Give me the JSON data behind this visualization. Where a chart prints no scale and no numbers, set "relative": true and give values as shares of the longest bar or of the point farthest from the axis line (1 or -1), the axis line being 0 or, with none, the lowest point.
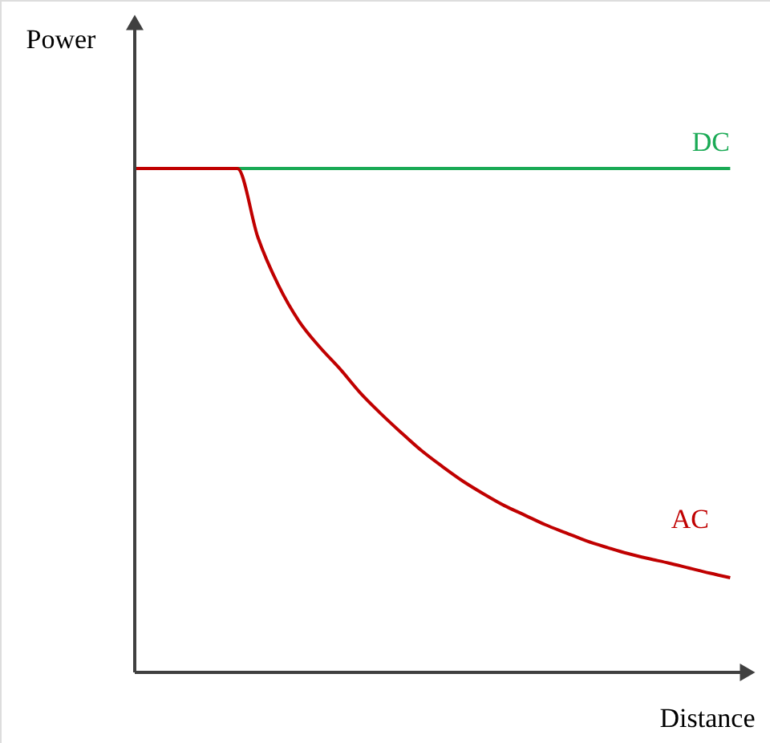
{
  "chart_data": {
    "type": "line",
    "relative": true,
    "xlabel": "Distance",
    "ylabel": "Power",
    "categories": [
      null,
      null,
      null,
      null,
      null,
      null,
      null,
      null,
      null,
      null,
      null,
      null,
      null,
      null,
      null,
      null,
      null,
      null,
      null,
      null,
      null,
      null,
      null,
      null,
      null,
      null,
      null,
      null,
      null,
      null
    ],
    "series": [
      {
        "name": "DC",
        "color": "#1aaa55",
        "values": [
          null,
          null,
          null,
          null,
          null,
          1,
          1,
          1,
          1,
          1,
          1,
          1,
          1,
          1,
          1,
          1,
          1,
          1,
          1,
          1,
          1,
          1,
          1,
          1,
          1,
          1,
          1,
          1,
          1,
          1
        ]
      },
      {
        "name": "AC",
        "color": "#c00000",
        "values": [
          1,
          1,
          1,
          1,
          1,
          1,
          0.863,
          0.768,
          0.697,
          0.646,
          0.602,
          0.554,
          0.513,
          0.475,
          0.439,
          0.408,
          0.379,
          0.354,
          0.331,
          0.312,
          0.293,
          0.277,
          0.261,
          0.248,
          0.236,
          0.226,
          0.217,
          0.207,
          0.197,
          0.188
        ]
      }
    ],
    "marker": "none",
    "line_style": "solid"
  }
}
